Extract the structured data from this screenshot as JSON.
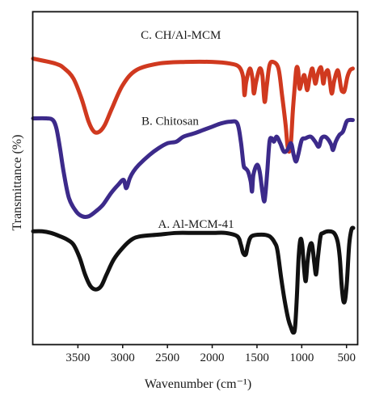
{
  "chart_data": {
    "type": "line",
    "title": "",
    "xlabel": "Wavenumber (cm⁻¹)",
    "ylabel": "Transmittance (%)",
    "x_reversed": true,
    "xlim": [
      4000,
      380
    ],
    "xticks": [
      {
        "value": 3500,
        "label": "3500"
      },
      {
        "value": 3000,
        "label": "3000"
      },
      {
        "value": 2500,
        "label": "2500"
      },
      {
        "value": 2000,
        "label": "2000"
      },
      {
        "value": 1500,
        "label": "1500"
      },
      {
        "value": 1000,
        "label": "1000"
      },
      {
        "value": 500,
        "label": "500"
      }
    ],
    "y_ticks_shown": false,
    "ylim": [
      0,
      100
    ],
    "grid": false,
    "legend": "none",
    "annotations": [
      {
        "text": "C. CH/Al-MCM",
        "x": 2350,
        "y": 92
      },
      {
        "text": "B. Chitosan",
        "x": 2470,
        "y": 66
      },
      {
        "text": "A. Al-MCM-41",
        "x": 2180,
        "y": 35
      }
    ],
    "series": [
      {
        "label": "C. CH/Al-MCM",
        "color": "#d0391f",
        "points": [
          [
            4000,
            86
          ],
          [
            3750,
            84.5
          ],
          [
            3650,
            83
          ],
          [
            3550,
            80
          ],
          [
            3460,
            74
          ],
          [
            3380,
            67
          ],
          [
            3320,
            64
          ],
          [
            3260,
            64
          ],
          [
            3200,
            66
          ],
          [
            3120,
            71
          ],
          [
            3000,
            78
          ],
          [
            2850,
            82.5
          ],
          [
            2600,
            84.5
          ],
          [
            2300,
            85
          ],
          [
            2000,
            85
          ],
          [
            1800,
            84.5
          ],
          [
            1700,
            83.5
          ],
          [
            1655,
            80.5
          ],
          [
            1640,
            75
          ],
          [
            1620,
            79
          ],
          [
            1580,
            83
          ],
          [
            1550,
            80
          ],
          [
            1535,
            75.5
          ],
          [
            1510,
            79
          ],
          [
            1470,
            83
          ],
          [
            1440,
            81
          ],
          [
            1415,
            73
          ],
          [
            1390,
            78
          ],
          [
            1360,
            84
          ],
          [
            1320,
            85
          ],
          [
            1260,
            83
          ],
          [
            1220,
            75
          ],
          [
            1180,
            66
          ],
          [
            1160,
            60
          ],
          [
            1140,
            58
          ],
          [
            1120,
            61
          ],
          [
            1100,
            70
          ],
          [
            1080,
            77
          ],
          [
            1060,
            83
          ],
          [
            1040,
            82.5
          ],
          [
            1025,
            77
          ],
          [
            1000,
            79
          ],
          [
            970,
            81
          ],
          [
            940,
            76.5
          ],
          [
            910,
            80.5
          ],
          [
            880,
            83
          ],
          [
            850,
            78.5
          ],
          [
            825,
            81
          ],
          [
            800,
            83
          ],
          [
            780,
            83
          ],
          [
            760,
            78.5
          ],
          [
            740,
            81
          ],
          [
            710,
            82.5
          ],
          [
            690,
            80
          ],
          [
            665,
            75.5
          ],
          [
            640,
            79
          ],
          [
            610,
            82
          ],
          [
            590,
            82
          ],
          [
            560,
            77
          ],
          [
            540,
            76
          ],
          [
            520,
            76.5
          ],
          [
            490,
            80.5
          ],
          [
            460,
            82.5
          ],
          [
            430,
            83
          ]
        ]
      },
      {
        "label": "B. Chitosan",
        "color": "#3c2a8a",
        "points": [
          [
            4000,
            68
          ],
          [
            3850,
            68
          ],
          [
            3780,
            67.5
          ],
          [
            3740,
            65
          ],
          [
            3700,
            59
          ],
          [
            3660,
            52
          ],
          [
            3600,
            44
          ],
          [
            3520,
            40
          ],
          [
            3450,
            38.5
          ],
          [
            3380,
            38.5
          ],
          [
            3300,
            40
          ],
          [
            3220,
            42
          ],
          [
            3130,
            45.5
          ],
          [
            3050,
            48
          ],
          [
            2990,
            49.5
          ],
          [
            2960,
            47
          ],
          [
            2920,
            50
          ],
          [
            2880,
            52
          ],
          [
            2820,
            54
          ],
          [
            2700,
            57
          ],
          [
            2600,
            59
          ],
          [
            2500,
            60.5
          ],
          [
            2400,
            61
          ],
          [
            2320,
            62.5
          ],
          [
            2200,
            63.5
          ],
          [
            2100,
            64.5
          ],
          [
            2000,
            65.5
          ],
          [
            1900,
            66.5
          ],
          [
            1800,
            67
          ],
          [
            1720,
            66.5
          ],
          [
            1680,
            61
          ],
          [
            1650,
            54
          ],
          [
            1630,
            53
          ],
          [
            1600,
            52
          ],
          [
            1570,
            49
          ],
          [
            1555,
            46
          ],
          [
            1540,
            51
          ],
          [
            1500,
            54
          ],
          [
            1470,
            52
          ],
          [
            1440,
            46
          ],
          [
            1420,
            43
          ],
          [
            1405,
            45.5
          ],
          [
            1385,
            52
          ],
          [
            1360,
            61
          ],
          [
            1335,
            62
          ],
          [
            1310,
            61
          ],
          [
            1280,
            62.5
          ],
          [
            1240,
            60.5
          ],
          [
            1200,
            58
          ],
          [
            1160,
            58.5
          ],
          [
            1120,
            60.5
          ],
          [
            1090,
            57
          ],
          [
            1065,
            55
          ],
          [
            1040,
            57
          ],
          [
            1000,
            61.5
          ],
          [
            960,
            62
          ],
          [
            900,
            62.5
          ],
          [
            850,
            61
          ],
          [
            810,
            59.5
          ],
          [
            780,
            62
          ],
          [
            740,
            62.5
          ],
          [
            700,
            61.5
          ],
          [
            670,
            60
          ],
          [
            650,
            58.5
          ],
          [
            620,
            61
          ],
          [
            580,
            63
          ],
          [
            540,
            64
          ],
          [
            500,
            67
          ],
          [
            470,
            67.5
          ],
          [
            430,
            67.5
          ]
        ]
      },
      {
        "label": "A. Al-MCM-41",
        "color": "#111111",
        "points": [
          [
            4000,
            34
          ],
          [
            3900,
            34
          ],
          [
            3800,
            33.5
          ],
          [
            3700,
            32.5
          ],
          [
            3620,
            31.5
          ],
          [
            3550,
            30
          ],
          [
            3480,
            26
          ],
          [
            3420,
            21
          ],
          [
            3360,
            17.5
          ],
          [
            3300,
            16.5
          ],
          [
            3240,
            17.5
          ],
          [
            3180,
            21
          ],
          [
            3100,
            25.5
          ],
          [
            3000,
            29
          ],
          [
            2900,
            31.5
          ],
          [
            2800,
            32.5
          ],
          [
            2600,
            33
          ],
          [
            2400,
            33.5
          ],
          [
            2200,
            33.5
          ],
          [
            2000,
            33.5
          ],
          [
            1850,
            33.5
          ],
          [
            1720,
            32.5
          ],
          [
            1680,
            30
          ],
          [
            1655,
            27.5
          ],
          [
            1625,
            27
          ],
          [
            1600,
            30
          ],
          [
            1560,
            32.5
          ],
          [
            1450,
            33
          ],
          [
            1360,
            32.5
          ],
          [
            1300,
            30.5
          ],
          [
            1270,
            28
          ],
          [
            1230,
            20
          ],
          [
            1190,
            13
          ],
          [
            1150,
            7.5
          ],
          [
            1120,
            5
          ],
          [
            1095,
            3.5
          ],
          [
            1075,
            5
          ],
          [
            1055,
            14
          ],
          [
            1035,
            26
          ],
          [
            1015,
            31.5
          ],
          [
            995,
            30
          ],
          [
            975,
            23
          ],
          [
            955,
            19
          ],
          [
            935,
            25
          ],
          [
            910,
            29.5
          ],
          [
            885,
            30
          ],
          [
            860,
            24.5
          ],
          [
            840,
            21
          ],
          [
            820,
            26
          ],
          [
            790,
            32.5
          ],
          [
            760,
            33.5
          ],
          [
            700,
            34
          ],
          [
            640,
            33.5
          ],
          [
            600,
            31
          ],
          [
            575,
            26
          ],
          [
            555,
            18
          ],
          [
            535,
            13
          ],
          [
            515,
            13.5
          ],
          [
            495,
            19
          ],
          [
            470,
            30
          ],
          [
            445,
            34.5
          ],
          [
            425,
            35
          ]
        ]
      }
    ]
  }
}
